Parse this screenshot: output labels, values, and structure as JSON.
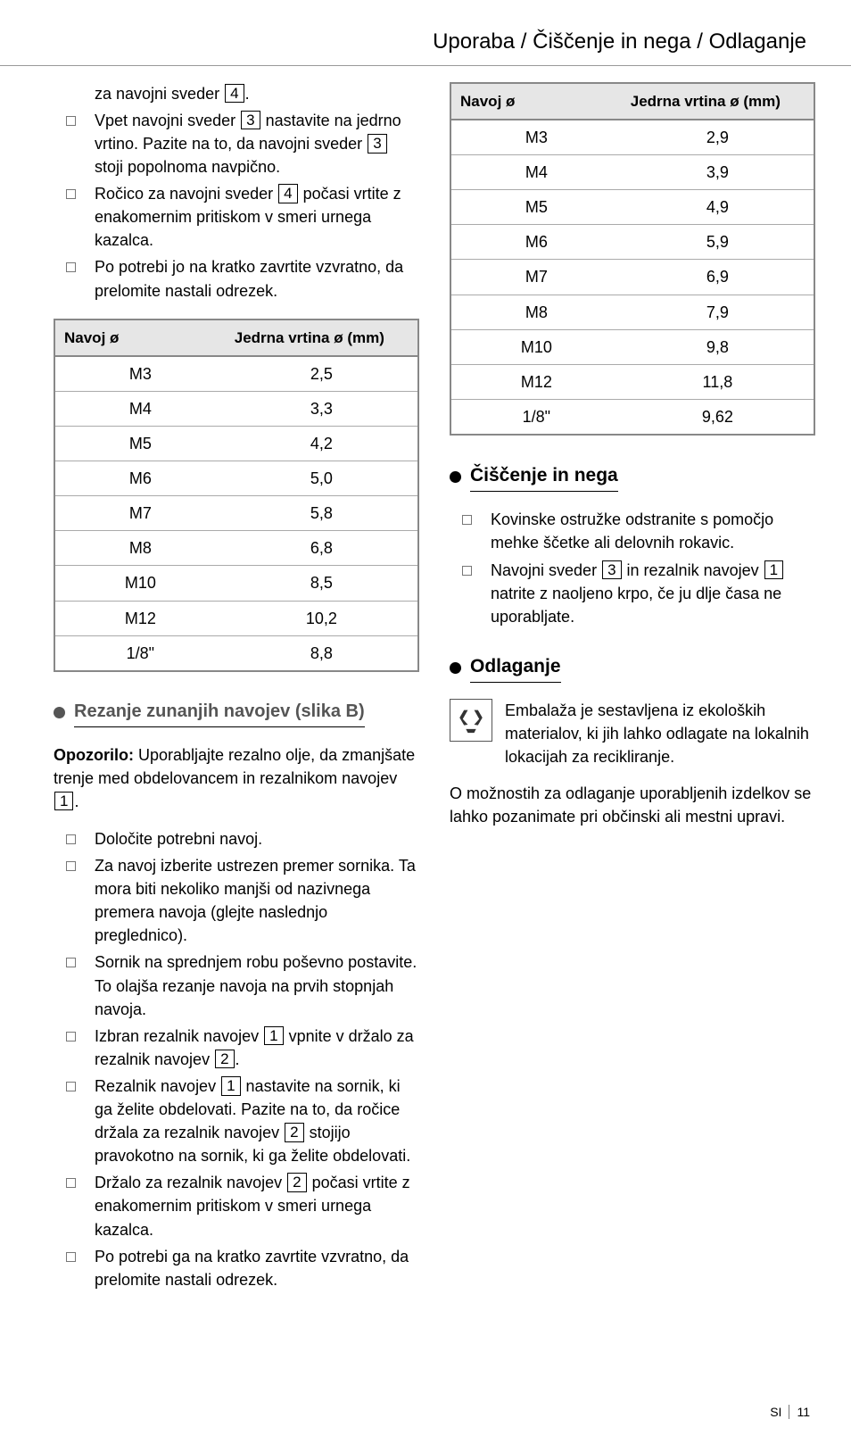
{
  "header": "Uporaba / Čiščenje in nega / Odlaganje",
  "intro_line": {
    "pre": "za navojni sveder ",
    "num": "4",
    "post": "."
  },
  "list1": [
    {
      "parts": [
        {
          "t": "Vpet navojni sveder "
        },
        {
          "n": "3"
        },
        {
          "t": " nastavite na jedrno vrtino. Pazite na to, da navojni sveder "
        },
        {
          "n": "3"
        },
        {
          "t": " stoji popolnoma navpično."
        }
      ]
    },
    {
      "parts": [
        {
          "t": "Ročico za navojni sveder "
        },
        {
          "n": "4"
        },
        {
          "t": " počasi vrtite z enakomernim pritiskom v smeri urnega kazalca."
        }
      ]
    },
    {
      "parts": [
        {
          "t": "Po potrebi jo na kratko zavrtite vzvratno, da prelomite nastali odrezek."
        }
      ]
    }
  ],
  "table_hdr": {
    "c1": "Navoj ø",
    "c2": "Jedrna vrtina ø (mm)"
  },
  "table1": [
    [
      "M3",
      "2,5"
    ],
    [
      "M4",
      "3,3"
    ],
    [
      "M5",
      "4,2"
    ],
    [
      "M6",
      "5,0"
    ],
    [
      "M7",
      "5,8"
    ],
    [
      "M8",
      "6,8"
    ],
    [
      "M10",
      "8,5"
    ],
    [
      "M12",
      "10,2"
    ],
    [
      "1/8\"",
      "8,8"
    ]
  ],
  "table2": [
    [
      "M3",
      "2,9"
    ],
    [
      "M4",
      "3,9"
    ],
    [
      "M5",
      "4,9"
    ],
    [
      "M6",
      "5,9"
    ],
    [
      "M7",
      "6,9"
    ],
    [
      "M8",
      "7,9"
    ],
    [
      "M10",
      "9,8"
    ],
    [
      "M12",
      "11,8"
    ],
    [
      "1/8\"",
      "9,62"
    ]
  ],
  "sec_b_title": "Rezanje zunanjih navojev (slika B)",
  "warning": {
    "label": "Opozorilo:",
    "pre": " Uporabljajte rezalno olje, da zmanjšate trenje med obdelovancem in rezalnikom navojev ",
    "num": "1",
    "post": "."
  },
  "list2": [
    {
      "parts": [
        {
          "t": "Določite potrebni navoj."
        }
      ]
    },
    {
      "parts": [
        {
          "t": "Za navoj izberite ustrezen premer sornika. Ta mora biti nekoliko manjši od nazivnega premera navoja (glejte naslednjo preglednico)."
        }
      ]
    },
    {
      "parts": [
        {
          "t": "Sornik na sprednjem robu poševno postavite. To olajša rezanje navoja na prvih stopnjah navoja."
        }
      ]
    },
    {
      "parts": [
        {
          "t": "Izbran rezalnik navojev "
        },
        {
          "n": "1"
        },
        {
          "t": " vpnite v držalo za rezalnik navojev "
        },
        {
          "n": "2"
        },
        {
          "t": "."
        }
      ]
    },
    {
      "parts": [
        {
          "t": "Rezalnik navojev "
        },
        {
          "n": "1"
        },
        {
          "t": " nastavite na sornik, ki ga želite obdelovati. Pazite na to, da ročice držala za rezalnik navojev "
        },
        {
          "n": "2"
        },
        {
          "t": " stojijo pravokotno na sornik, ki ga želite obdelovati."
        }
      ]
    },
    {
      "parts": [
        {
          "t": "Držalo za rezalnik navojev "
        },
        {
          "n": "2"
        },
        {
          "t": " počasi vrtite z enakomernim pritiskom v smeri urnega kazalca."
        }
      ]
    },
    {
      "parts": [
        {
          "t": "Po potrebi ga na kratko zavrtite vzvratno, da prelomite nastali odrezek."
        }
      ]
    }
  ],
  "sec_clean_title": "Čiščenje in nega",
  "list3": [
    {
      "parts": [
        {
          "t": "Kovinske ostružke odstranite s pomočjo mehke ščetke ali delovnih rokavic."
        }
      ]
    },
    {
      "parts": [
        {
          "t": "Navojni sveder "
        },
        {
          "n": "3"
        },
        {
          "t": " in rezalnik navojev "
        },
        {
          "n": "1"
        },
        {
          "t": " natrite z naoljeno krpo, če ju dlje časa ne uporabljate."
        }
      ]
    }
  ],
  "sec_disposal_title": "Odlaganje",
  "disposal_para1": "Embalaža je sestavljena iz ekoloških materialov, ki jih lahko odlagate na lokalnih lokacijah za recikliranje.",
  "disposal_para2": "O možnostih za odlaganje uporabljenih izdelkov se lahko pozanimate pri občinski ali mestni upravi.",
  "footer": {
    "lang": "SI",
    "page": "11"
  }
}
